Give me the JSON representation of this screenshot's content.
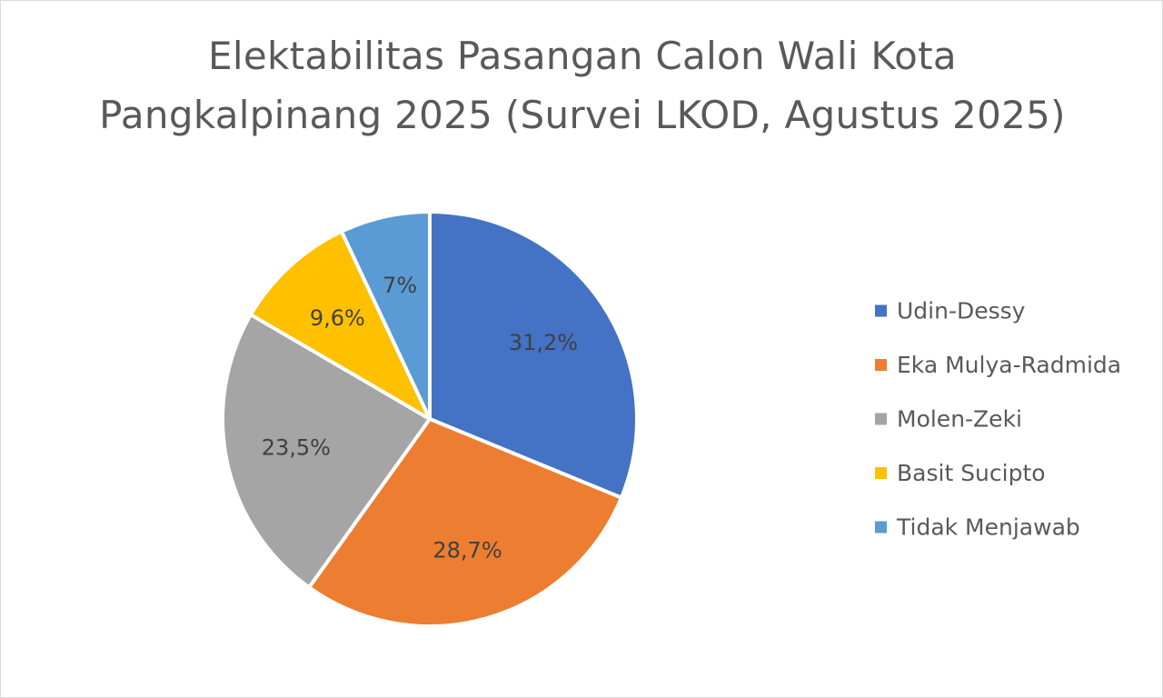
{
  "chart_data": {
    "type": "pie",
    "title_lines": [
      "Elektabilitas Pasangan Calon Wali Kota",
      "Pangkalpinang 2025 (Survei LKOD, Agustus 2025)"
    ],
    "legend_position": "right",
    "slices": [
      {
        "name": "Udin-Dessy",
        "value": 31.2,
        "label": "31,2%",
        "color": "#4472C4"
      },
      {
        "name": "Eka Mulya-Radmida",
        "value": 28.7,
        "label": "28,7%",
        "color": "#ED7D31"
      },
      {
        "name": "Molen-Zeki",
        "value": 23.5,
        "label": "23,5%",
        "color": "#A5A5A5"
      },
      {
        "name": "Basit Sucipto",
        "value": 9.6,
        "label": "9,6%",
        "color": "#FFC000"
      },
      {
        "name": "Tidak Menjawab",
        "value": 7,
        "label": "7%",
        "color": "#5B9BD5"
      }
    ]
  }
}
